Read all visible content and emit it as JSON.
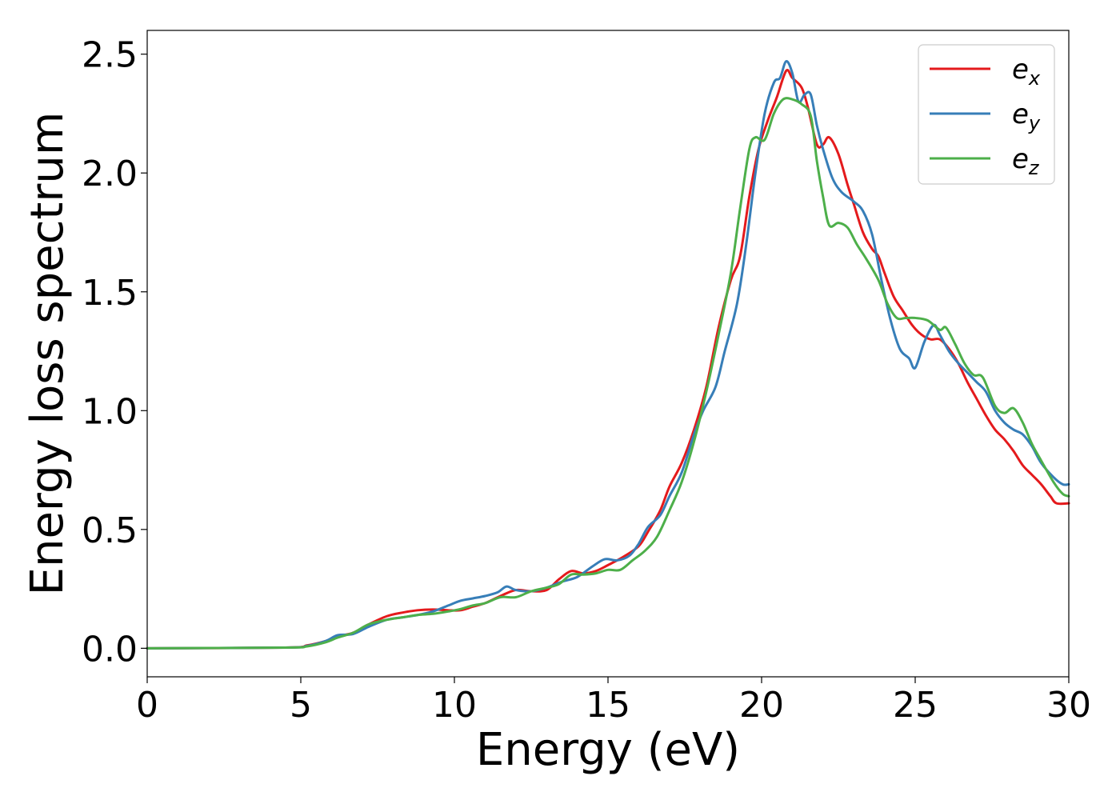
{
  "chart_data": {
    "type": "line",
    "xlabel": "Energy (eV)",
    "ylabel": "Energy loss spectrum",
    "xlim": [
      0,
      30
    ],
    "ylim": [
      -0.12,
      2.6
    ],
    "xticks": [
      0,
      5,
      10,
      15,
      20,
      25,
      30
    ],
    "xtick_labels": [
      "0",
      "5",
      "10",
      "15",
      "20",
      "25",
      "30"
    ],
    "yticks": [
      0.0,
      0.5,
      1.0,
      1.5,
      2.0,
      2.5
    ],
    "ytick_labels": [
      "0.0",
      "0.5",
      "1.0",
      "1.5",
      "2.0",
      "2.5"
    ],
    "grid": false,
    "legend_position": "top-right",
    "series": [
      {
        "name": "e_x",
        "legend_base": "e",
        "legend_sub": "x",
        "color": "#e41a1c",
        "points": [
          [
            0,
            0
          ],
          [
            4.5,
            0.003
          ],
          [
            5.2,
            0.012
          ],
          [
            5.8,
            0.03
          ],
          [
            6.2,
            0.05
          ],
          [
            6.7,
            0.065
          ],
          [
            7.2,
            0.1
          ],
          [
            7.8,
            0.135
          ],
          [
            8.3,
            0.15
          ],
          [
            8.8,
            0.16
          ],
          [
            9.3,
            0.163
          ],
          [
            9.8,
            0.16
          ],
          [
            10.2,
            0.16
          ],
          [
            10.6,
            0.175
          ],
          [
            11.0,
            0.19
          ],
          [
            11.5,
            0.22
          ],
          [
            12.0,
            0.245
          ],
          [
            12.5,
            0.24
          ],
          [
            13.0,
            0.245
          ],
          [
            13.4,
            0.29
          ],
          [
            13.8,
            0.325
          ],
          [
            14.2,
            0.315
          ],
          [
            14.6,
            0.325
          ],
          [
            15.0,
            0.35
          ],
          [
            15.5,
            0.385
          ],
          [
            16.0,
            0.43
          ],
          [
            16.3,
            0.49
          ],
          [
            16.7,
            0.58
          ],
          [
            17.0,
            0.68
          ],
          [
            17.4,
            0.78
          ],
          [
            17.8,
            0.92
          ],
          [
            18.2,
            1.1
          ],
          [
            18.6,
            1.35
          ],
          [
            19.0,
            1.55
          ],
          [
            19.3,
            1.65
          ],
          [
            19.6,
            1.9
          ],
          [
            19.9,
            2.1
          ],
          [
            20.2,
            2.22
          ],
          [
            20.5,
            2.32
          ],
          [
            20.8,
            2.43
          ],
          [
            21.0,
            2.4
          ],
          [
            21.3,
            2.36
          ],
          [
            21.5,
            2.28
          ],
          [
            21.8,
            2.12
          ],
          [
            22.0,
            2.12
          ],
          [
            22.2,
            2.15
          ],
          [
            22.5,
            2.08
          ],
          [
            22.8,
            1.95
          ],
          [
            23.0,
            1.87
          ],
          [
            23.3,
            1.75
          ],
          [
            23.6,
            1.68
          ],
          [
            23.8,
            1.65
          ],
          [
            24.0,
            1.58
          ],
          [
            24.3,
            1.48
          ],
          [
            24.6,
            1.42
          ],
          [
            24.9,
            1.36
          ],
          [
            25.2,
            1.32
          ],
          [
            25.5,
            1.3
          ],
          [
            25.8,
            1.3
          ],
          [
            26.1,
            1.26
          ],
          [
            26.4,
            1.2
          ],
          [
            26.7,
            1.12
          ],
          [
            27.0,
            1.05
          ],
          [
            27.3,
            0.98
          ],
          [
            27.6,
            0.92
          ],
          [
            27.9,
            0.88
          ],
          [
            28.2,
            0.83
          ],
          [
            28.5,
            0.77
          ],
          [
            28.8,
            0.73
          ],
          [
            29.1,
            0.69
          ],
          [
            29.4,
            0.64
          ],
          [
            29.6,
            0.61
          ],
          [
            30.0,
            0.61
          ]
        ]
      },
      {
        "name": "e_y",
        "legend_base": "e",
        "legend_sub": "y",
        "color": "#377eb8",
        "points": [
          [
            0,
            0
          ],
          [
            4.5,
            0.003
          ],
          [
            5.2,
            0.01
          ],
          [
            5.8,
            0.03
          ],
          [
            6.2,
            0.055
          ],
          [
            6.7,
            0.06
          ],
          [
            7.2,
            0.09
          ],
          [
            7.8,
            0.12
          ],
          [
            8.3,
            0.13
          ],
          [
            8.8,
            0.14
          ],
          [
            9.3,
            0.155
          ],
          [
            9.8,
            0.18
          ],
          [
            10.2,
            0.2
          ],
          [
            10.6,
            0.21
          ],
          [
            11.0,
            0.22
          ],
          [
            11.4,
            0.235
          ],
          [
            11.7,
            0.26
          ],
          [
            12.0,
            0.245
          ],
          [
            12.5,
            0.24
          ],
          [
            13.0,
            0.255
          ],
          [
            13.5,
            0.28
          ],
          [
            14.0,
            0.3
          ],
          [
            14.5,
            0.345
          ],
          [
            14.9,
            0.375
          ],
          [
            15.3,
            0.37
          ],
          [
            15.7,
            0.39
          ],
          [
            16.0,
            0.44
          ],
          [
            16.3,
            0.51
          ],
          [
            16.7,
            0.56
          ],
          [
            17.0,
            0.64
          ],
          [
            17.4,
            0.74
          ],
          [
            17.8,
            0.9
          ],
          [
            18.1,
            1.0
          ],
          [
            18.5,
            1.1
          ],
          [
            18.8,
            1.25
          ],
          [
            19.2,
            1.45
          ],
          [
            19.5,
            1.7
          ],
          [
            19.8,
            2.0
          ],
          [
            20.1,
            2.25
          ],
          [
            20.4,
            2.38
          ],
          [
            20.6,
            2.4
          ],
          [
            20.8,
            2.47
          ],
          [
            21.0,
            2.42
          ],
          [
            21.2,
            2.3
          ],
          [
            21.4,
            2.33
          ],
          [
            21.6,
            2.33
          ],
          [
            21.8,
            2.2
          ],
          [
            22.0,
            2.1
          ],
          [
            22.3,
            1.98
          ],
          [
            22.6,
            1.92
          ],
          [
            23.0,
            1.88
          ],
          [
            23.3,
            1.84
          ],
          [
            23.6,
            1.74
          ],
          [
            23.9,
            1.55
          ],
          [
            24.2,
            1.38
          ],
          [
            24.5,
            1.26
          ],
          [
            24.8,
            1.22
          ],
          [
            25.0,
            1.18
          ],
          [
            25.3,
            1.29
          ],
          [
            25.6,
            1.36
          ],
          [
            25.8,
            1.32
          ],
          [
            26.1,
            1.25
          ],
          [
            26.4,
            1.2
          ],
          [
            26.7,
            1.16
          ],
          [
            27.0,
            1.12
          ],
          [
            27.3,
            1.08
          ],
          [
            27.6,
            1.0
          ],
          [
            27.9,
            0.95
          ],
          [
            28.2,
            0.92
          ],
          [
            28.5,
            0.9
          ],
          [
            28.8,
            0.85
          ],
          [
            29.1,
            0.78
          ],
          [
            29.5,
            0.72
          ],
          [
            29.8,
            0.69
          ],
          [
            30.0,
            0.69
          ]
        ]
      },
      {
        "name": "e_z",
        "legend_base": "e",
        "legend_sub": "z",
        "color": "#4daf4a",
        "points": [
          [
            0,
            0
          ],
          [
            4.5,
            0.003
          ],
          [
            5.2,
            0.008
          ],
          [
            5.8,
            0.025
          ],
          [
            6.2,
            0.045
          ],
          [
            6.7,
            0.065
          ],
          [
            7.2,
            0.1
          ],
          [
            7.8,
            0.12
          ],
          [
            8.3,
            0.13
          ],
          [
            8.8,
            0.14
          ],
          [
            9.3,
            0.145
          ],
          [
            9.8,
            0.155
          ],
          [
            10.2,
            0.165
          ],
          [
            10.6,
            0.18
          ],
          [
            11.0,
            0.19
          ],
          [
            11.5,
            0.215
          ],
          [
            12.0,
            0.215
          ],
          [
            12.5,
            0.24
          ],
          [
            13.0,
            0.255
          ],
          [
            13.4,
            0.27
          ],
          [
            13.8,
            0.31
          ],
          [
            14.2,
            0.31
          ],
          [
            14.6,
            0.315
          ],
          [
            15.0,
            0.33
          ],
          [
            15.4,
            0.33
          ],
          [
            15.8,
            0.37
          ],
          [
            16.2,
            0.41
          ],
          [
            16.6,
            0.47
          ],
          [
            17.0,
            0.58
          ],
          [
            17.4,
            0.7
          ],
          [
            17.8,
            0.87
          ],
          [
            18.2,
            1.08
          ],
          [
            18.6,
            1.32
          ],
          [
            19.0,
            1.58
          ],
          [
            19.3,
            1.85
          ],
          [
            19.6,
            2.1
          ],
          [
            19.8,
            2.15
          ],
          [
            20.1,
            2.14
          ],
          [
            20.4,
            2.25
          ],
          [
            20.7,
            2.31
          ],
          [
            21.0,
            2.31
          ],
          [
            21.3,
            2.29
          ],
          [
            21.6,
            2.24
          ],
          [
            21.8,
            2.05
          ],
          [
            22.0,
            1.9
          ],
          [
            22.2,
            1.78
          ],
          [
            22.5,
            1.79
          ],
          [
            22.8,
            1.77
          ],
          [
            23.1,
            1.7
          ],
          [
            23.4,
            1.64
          ],
          [
            23.8,
            1.55
          ],
          [
            24.1,
            1.45
          ],
          [
            24.4,
            1.39
          ],
          [
            24.7,
            1.39
          ],
          [
            25.0,
            1.39
          ],
          [
            25.4,
            1.38
          ],
          [
            25.8,
            1.34
          ],
          [
            26.0,
            1.35
          ],
          [
            26.3,
            1.28
          ],
          [
            26.6,
            1.2
          ],
          [
            26.9,
            1.15
          ],
          [
            27.2,
            1.14
          ],
          [
            27.6,
            1.02
          ],
          [
            27.9,
            0.99
          ],
          [
            28.2,
            1.01
          ],
          [
            28.5,
            0.95
          ],
          [
            28.8,
            0.86
          ],
          [
            29.1,
            0.79
          ],
          [
            29.5,
            0.7
          ],
          [
            29.8,
            0.65
          ],
          [
            30.0,
            0.64
          ]
        ]
      }
    ]
  }
}
